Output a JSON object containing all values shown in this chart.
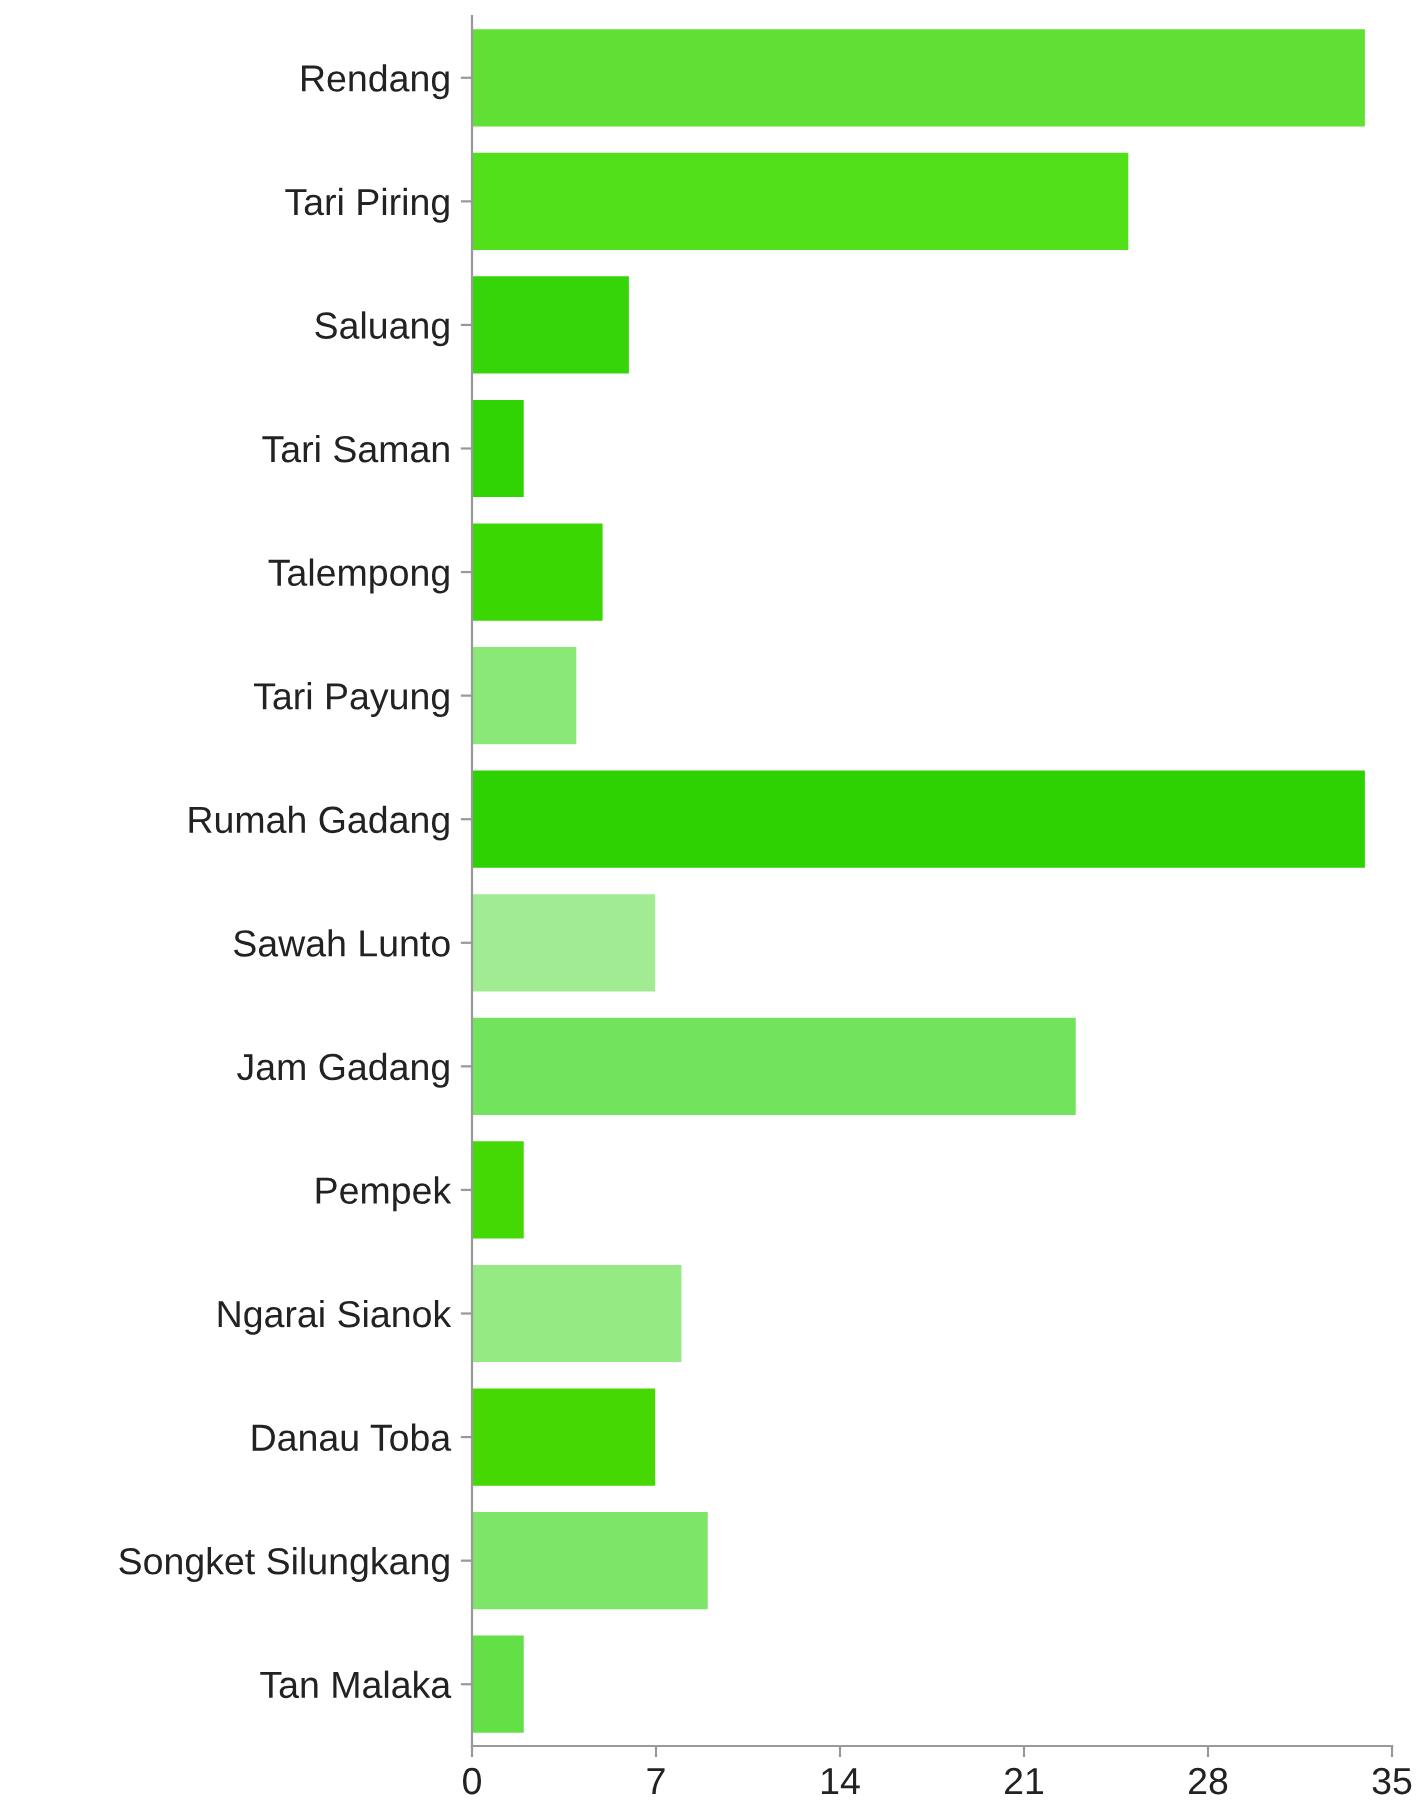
{
  "chart_data": {
    "type": "bar",
    "orientation": "horizontal",
    "categories": [
      "Rendang",
      "Tari Piring",
      "Saluang",
      "Tari Saman",
      "Talempong",
      "Tari Payung",
      "Rumah Gadang",
      "Sawah Lunto",
      "Jam Gadang",
      "Pempek",
      "Ngarai Sianok",
      "Danau Toba",
      "Songket Silungkang",
      "Tan Malaka"
    ],
    "values": [
      34,
      25,
      6,
      2,
      5,
      4,
      34,
      7,
      23,
      2,
      8,
      7,
      9,
      2
    ],
    "colors": [
      "#60e035",
      "#52e01a",
      "#35d50a",
      "#30d405",
      "#3bd703",
      "#8ae877",
      "#2ed102",
      "#a1eb92",
      "#72e35d",
      "#44d805",
      "#96ea84",
      "#45d802",
      "#7de668",
      "#63e045"
    ],
    "xlim": [
      0,
      35
    ],
    "xticks": [
      0,
      7,
      14,
      21,
      28,
      35
    ],
    "grid": false
  }
}
